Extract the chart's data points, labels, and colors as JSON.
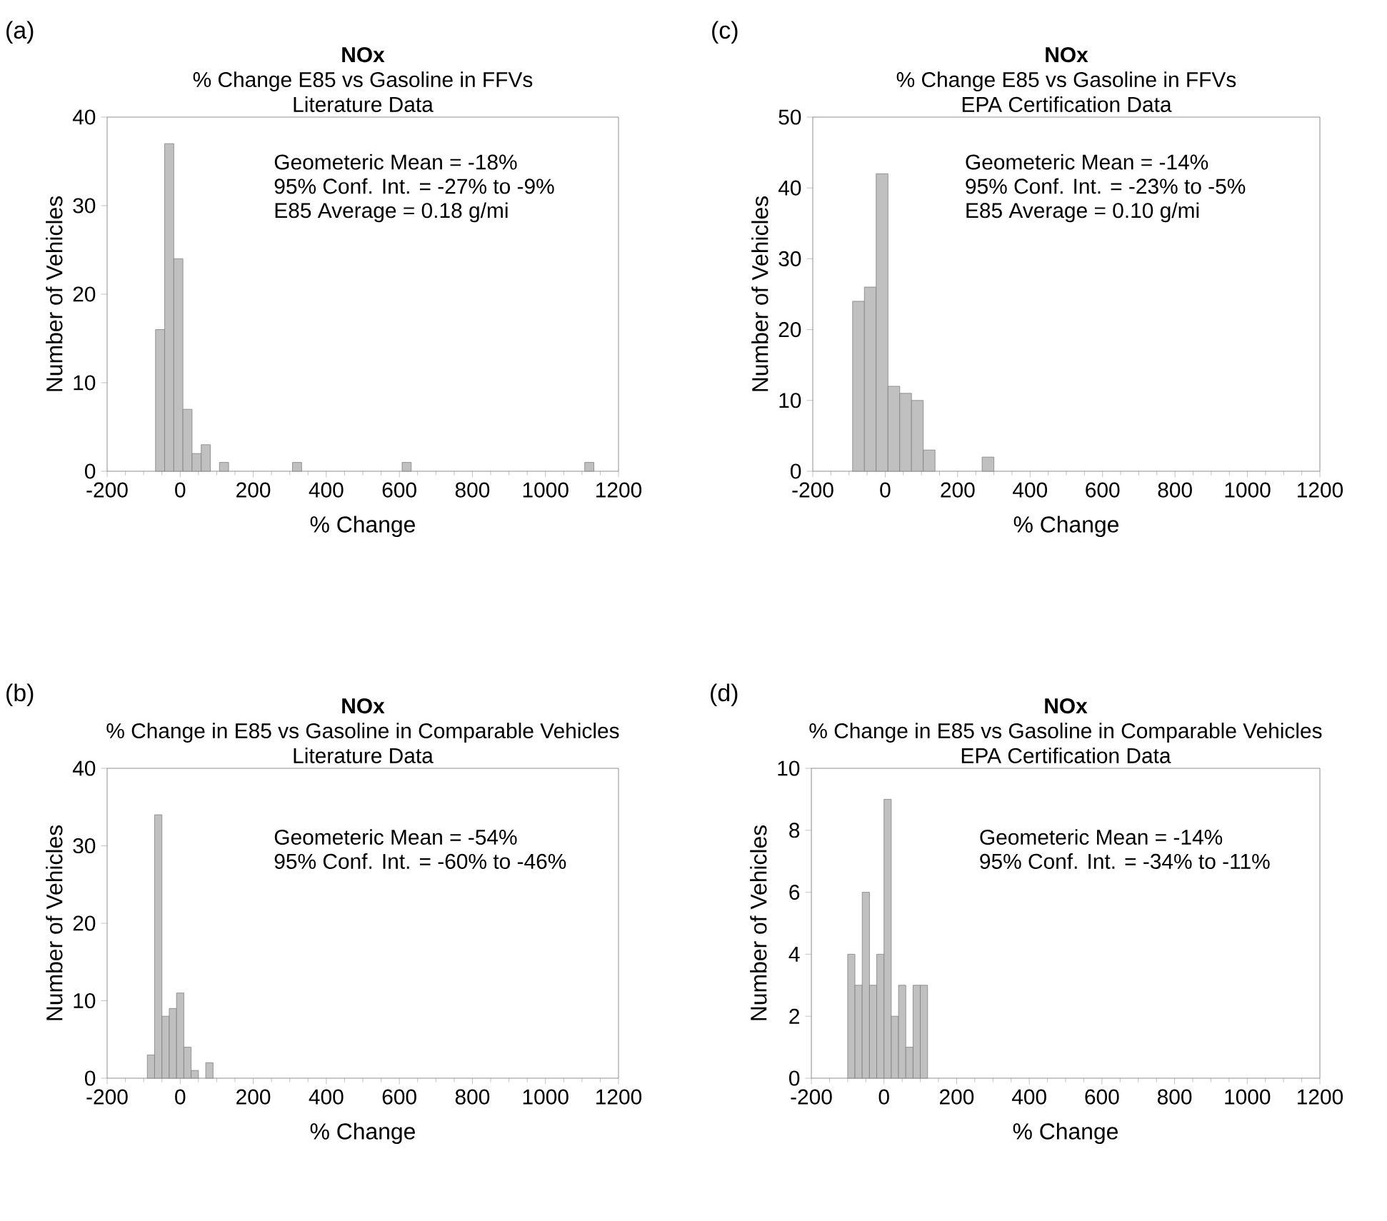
{
  "chart_data": [
    {
      "type": "histogram",
      "title": "NOx",
      "subtitle": "% Change E85 vs Gasoline in FFVs",
      "xlabel": "% Change",
      "ylabel": "Number of Vehicles",
      "color": "#c0c0c0",
      "annotations": [
        "(a)",
        "Literature Data",
        "Geometeric Mean = -18%",
        "95% Conf. Int. = -27% to -9%",
        "E85 Average = 0.18 g/mi"
      ],
      "bins": [
        -67.5,
        -42.5,
        -17.5,
        7.5,
        32.5,
        57.5,
        82.5,
        107.5,
        132.5,
        157.5,
        182.5,
        207.5,
        232.5,
        257.5,
        282.5,
        307.5,
        332.5,
        357.5,
        382.5,
        407.5,
        432.5,
        457.5,
        482.5,
        507.5,
        532.5,
        557.5,
        582.5,
        607.5,
        632.5,
        657.5,
        682.5,
        707.5,
        732.5,
        757.5,
        782.5,
        807.5,
        832.5,
        857.5,
        882.5,
        907.5,
        932.5,
        957.5,
        982.5,
        1007.5,
        1032.5,
        1057.5,
        1082.5,
        1107.5,
        1132.5
      ],
      "values": [
        16,
        37,
        24,
        7,
        2,
        3,
        0,
        1,
        0,
        0,
        0,
        0,
        0,
        0,
        0,
        1,
        0,
        0,
        0,
        0,
        0,
        0,
        0,
        0,
        0,
        0,
        0,
        1,
        0,
        0,
        0,
        0,
        0,
        0,
        0,
        0,
        0,
        0,
        0,
        0,
        0,
        0,
        0,
        0,
        0,
        0,
        0,
        1
      ],
      "xlim": [
        -200,
        1200
      ],
      "xticks": [
        -200,
        0,
        200,
        400,
        600,
        800,
        1000,
        1200
      ],
      "ylim": [
        0,
        40
      ],
      "yticks": [
        0,
        10,
        20,
        30,
        40
      ]
    },
    {
      "type": "histogram",
      "title": "NOx",
      "subtitle": "% Change E85 vs Gasoline in FFVs",
      "xlabel": "% Change",
      "ylabel": "Number of Vehicles",
      "color": "#c0c0c0",
      "annotations": [
        "(c)",
        "EPA Certification Data",
        "Geometeric Mean = -14%",
        "95% Conf. Int. = -23% to -5%",
        "E85 Average = 0.10 g/mi"
      ],
      "bins": [
        -90,
        -57.5,
        -25,
        7.5,
        40,
        72.5,
        105,
        137.5,
        170,
        202.5,
        235,
        267.5,
        300
      ],
      "values": [
        24,
        26,
        42,
        12,
        11,
        10,
        3,
        0,
        0,
        0,
        0,
        2
      ],
      "xlim": [
        -200,
        1200
      ],
      "xticks": [
        -200,
        0,
        200,
        400,
        600,
        800,
        1000,
        1200
      ],
      "ylim": [
        0,
        50
      ],
      "yticks": [
        0,
        10,
        20,
        30,
        40,
        50
      ]
    },
    {
      "type": "histogram",
      "title": "NOx",
      "subtitle": "% Change in E85 vs Gasoline in Comparable Vehicles",
      "xlabel": "% Change",
      "ylabel": "Number of Vehicles",
      "color": "#c0c0c0",
      "annotations": [
        "(b)",
        "Literature Data",
        "Geometeric Mean = -54%",
        "95% Conf. Int. = -60% to -46%"
      ],
      "bins": [
        -90,
        -70,
        -50,
        -30,
        -10,
        10,
        30,
        50,
        70,
        90
      ],
      "values": [
        3,
        34,
        8,
        9,
        11,
        4,
        1,
        0,
        2
      ],
      "xlim": [
        -200,
        1200
      ],
      "xticks": [
        -200,
        0,
        200,
        400,
        600,
        800,
        1000,
        1200
      ],
      "ylim": [
        0,
        40
      ],
      "yticks": [
        0,
        10,
        20,
        30,
        40
      ]
    },
    {
      "type": "histogram",
      "title": "NOx",
      "subtitle": "% Change in E85 vs Gasoline in Comparable Vehicles",
      "xlabel": "% Change",
      "ylabel": "Number of Vehicles",
      "color": "#c0c0c0",
      "annotations": [
        "(d)",
        "EPA Certification Data",
        "Geometeric Mean = -14%",
        "95% Conf. Int. = -34% to -11%"
      ],
      "bins": [
        -100,
        -80,
        -60,
        -40,
        -20,
        0,
        20,
        40,
        60,
        80,
        100,
        120
      ],
      "values": [
        4,
        3,
        6,
        3,
        4,
        9,
        2,
        3,
        1,
        3,
        3
      ],
      "xlim": [
        -200,
        1200
      ],
      "xticks": [
        -200,
        0,
        200,
        400,
        600,
        800,
        1000,
        1200
      ],
      "ylim": [
        0,
        10
      ],
      "yticks": [
        0,
        2,
        4,
        6,
        8,
        10
      ]
    }
  ]
}
